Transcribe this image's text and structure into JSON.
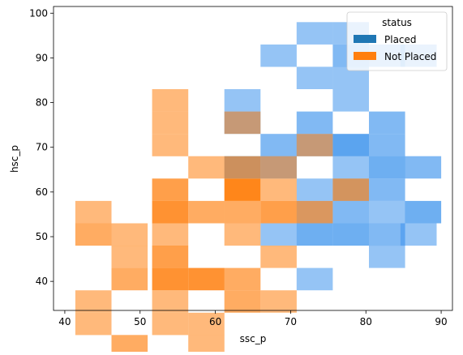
{
  "chart_data": {
    "type": "heatmap",
    "title": "",
    "xlabel": "ssc_p",
    "ylabel": "hsc_p",
    "xlim": [
      38.5,
      91.5
    ],
    "ylim": [
      33.5,
      101.5
    ],
    "xticks": [
      40,
      50,
      60,
      70,
      80,
      90
    ],
    "yticks": [
      40,
      50,
      60,
      70,
      80,
      90,
      100
    ],
    "grid": false,
    "legend": {
      "title": "status",
      "placement": "top-right",
      "entries": [
        {
          "label": "Placed",
          "color": "#1f77b4"
        },
        {
          "label": "Not Placed",
          "color": "#ff7f0e"
        }
      ]
    },
    "bin_width": {
      "x": 4.8,
      "y": 5.0
    },
    "series": [
      {
        "name": "Placed",
        "color": "#3e94ec",
        "cells": [
          {
            "x0": 70.8,
            "y0": 93,
            "count": 1
          },
          {
            "x0": 75.6,
            "y0": 93,
            "count": 1
          },
          {
            "x0": 66.0,
            "y0": 88,
            "count": 1
          },
          {
            "x0": 75.6,
            "y0": 88,
            "count": 2
          },
          {
            "x0": 80.4,
            "y0": 88,
            "count": 1
          },
          {
            "x0": 84.6,
            "y0": 88,
            "count": 1
          },
          {
            "x0": 70.8,
            "y0": 83,
            "count": 1
          },
          {
            "x0": 75.6,
            "y0": 83,
            "count": 1
          },
          {
            "x0": 61.2,
            "y0": 78,
            "count": 1
          },
          {
            "x0": 75.6,
            "y0": 78,
            "count": 1
          },
          {
            "x0": 61.2,
            "y0": 73,
            "count": 2
          },
          {
            "x0": 70.8,
            "y0": 73,
            "count": 2
          },
          {
            "x0": 80.4,
            "y0": 73,
            "count": 2
          },
          {
            "x0": 66.0,
            "y0": 68,
            "count": 2
          },
          {
            "x0": 70.8,
            "y0": 68,
            "count": 2
          },
          {
            "x0": 75.6,
            "y0": 68,
            "count": 4
          },
          {
            "x0": 80.4,
            "y0": 68,
            "count": 2
          },
          {
            "x0": 61.2,
            "y0": 63,
            "count": 3
          },
          {
            "x0": 66.0,
            "y0": 63,
            "count": 2
          },
          {
            "x0": 75.6,
            "y0": 63,
            "count": 1
          },
          {
            "x0": 80.4,
            "y0": 63,
            "count": 3
          },
          {
            "x0": 85.2,
            "y0": 63,
            "count": 2
          },
          {
            "x0": 70.8,
            "y0": 58,
            "count": 1
          },
          {
            "x0": 75.6,
            "y0": 58,
            "count": 2
          },
          {
            "x0": 80.4,
            "y0": 58,
            "count": 2
          },
          {
            "x0": 70.8,
            "y0": 53,
            "count": 1
          },
          {
            "x0": 75.6,
            "y0": 53,
            "count": 2
          },
          {
            "x0": 80.4,
            "y0": 53,
            "count": 1
          },
          {
            "x0": 85.2,
            "y0": 53,
            "count": 3
          },
          {
            "x0": 66.0,
            "y0": 48,
            "count": 1
          },
          {
            "x0": 70.8,
            "y0": 48,
            "count": 3
          },
          {
            "x0": 75.6,
            "y0": 48,
            "count": 3
          },
          {
            "x0": 80.4,
            "y0": 48,
            "count": 2
          },
          {
            "x0": 84.6,
            "y0": 48,
            "count": 1
          },
          {
            "x0": 80.4,
            "y0": 43,
            "count": 1
          },
          {
            "x0": 70.8,
            "y0": 38,
            "count": 1
          }
        ]
      },
      {
        "name": "Not Placed",
        "color": "#ff7f0e",
        "cells": [
          {
            "x0": 51.6,
            "y0": 78,
            "count": 1
          },
          {
            "x0": 51.6,
            "y0": 73,
            "count": 1
          },
          {
            "x0": 61.2,
            "y0": 73,
            "count": 1
          },
          {
            "x0": 70.8,
            "y0": 68,
            "count": 1
          },
          {
            "x0": 51.6,
            "y0": 68,
            "count": 1
          },
          {
            "x0": 56.4,
            "y0": 63,
            "count": 1
          },
          {
            "x0": 61.2,
            "y0": 63,
            "count": 2
          },
          {
            "x0": 66.0,
            "y0": 63,
            "count": 1
          },
          {
            "x0": 51.6,
            "y0": 58,
            "count": 3
          },
          {
            "x0": 61.2,
            "y0": 58,
            "count": 5
          },
          {
            "x0": 66.0,
            "y0": 58,
            "count": 1
          },
          {
            "x0": 75.6,
            "y0": 58,
            "count": 2
          },
          {
            "x0": 41.4,
            "y0": 53,
            "count": 1
          },
          {
            "x0": 51.6,
            "y0": 53,
            "count": 4
          },
          {
            "x0": 56.4,
            "y0": 53,
            "count": 2
          },
          {
            "x0": 61.2,
            "y0": 53,
            "count": 2
          },
          {
            "x0": 66.0,
            "y0": 53,
            "count": 3
          },
          {
            "x0": 70.8,
            "y0": 53,
            "count": 2
          },
          {
            "x0": 41.4,
            "y0": 48,
            "count": 2
          },
          {
            "x0": 46.2,
            "y0": 48,
            "count": 1
          },
          {
            "x0": 51.6,
            "y0": 48,
            "count": 1
          },
          {
            "x0": 61.2,
            "y0": 48,
            "count": 1
          },
          {
            "x0": 46.2,
            "y0": 43,
            "count": 1
          },
          {
            "x0": 51.6,
            "y0": 43,
            "count": 3
          },
          {
            "x0": 66.0,
            "y0": 43,
            "count": 1
          },
          {
            "x0": 46.2,
            "y0": 38,
            "count": 2
          },
          {
            "x0": 51.6,
            "y0": 38,
            "count": 4
          },
          {
            "x0": 56.4,
            "y0": 38,
            "count": 4
          },
          {
            "x0": 61.2,
            "y0": 38,
            "count": 2
          },
          {
            "x0": 41.4,
            "y0": 33,
            "count": 1
          },
          {
            "x0": 51.6,
            "y0": 33,
            "count": 1
          },
          {
            "x0": 61.2,
            "y0": 33,
            "count": 2
          },
          {
            "x0": 66.0,
            "y0": 33,
            "count": 1
          },
          {
            "x0": 51.6,
            "y0": 28,
            "count": 1
          },
          {
            "x0": 56.4,
            "y0": 28,
            "count": 1
          },
          {
            "x0": 41.4,
            "y0": 28,
            "count": 1
          },
          {
            "x0": 46.2,
            "y0": 23,
            "count": 2
          },
          {
            "x0": 56.4,
            "y0": 23,
            "count": 1
          }
        ]
      }
    ]
  }
}
